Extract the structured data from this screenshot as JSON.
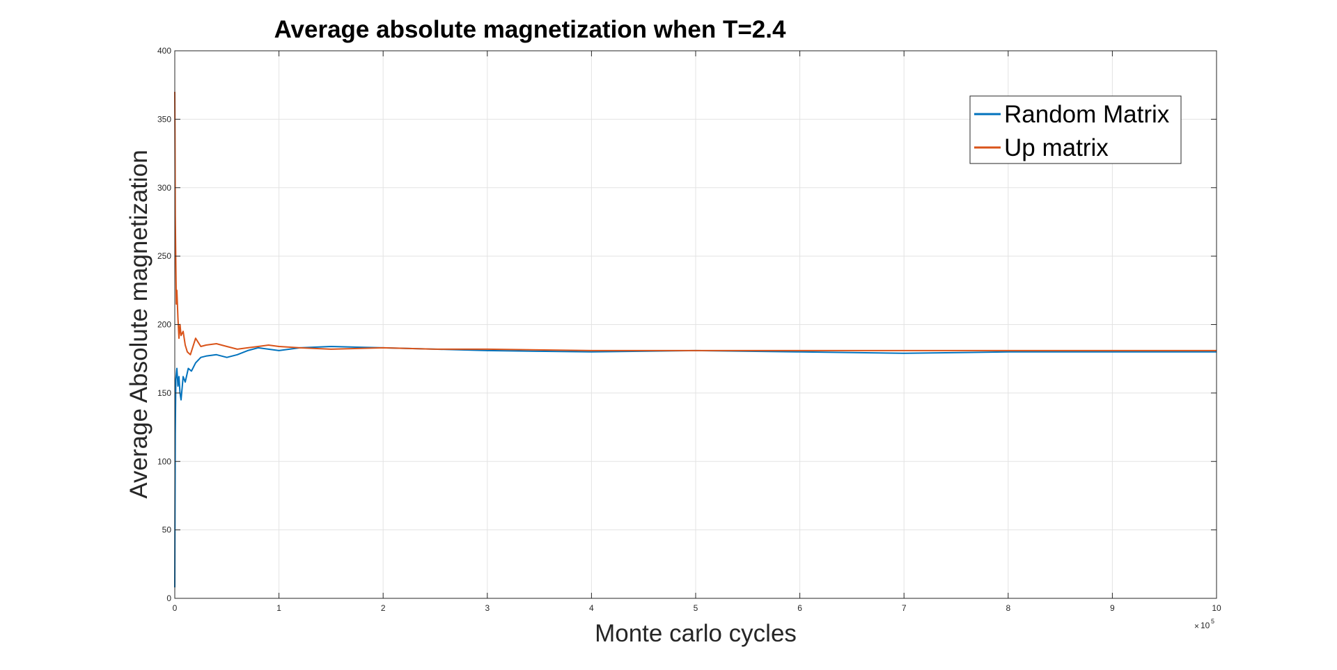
{
  "chart_data": {
    "type": "line",
    "title": "Average absolute magnetization when T=2.4",
    "xlabel": "Monte carlo cycles",
    "ylabel": "Average Absolute magnetization",
    "x_exponent_base": "10",
    "x_exponent_power": "5",
    "xlim": [
      0,
      10
    ],
    "ylim": [
      0,
      400
    ],
    "xticks": [
      "0",
      "1",
      "2",
      "3",
      "4",
      "5",
      "6",
      "7",
      "8",
      "9",
      "10"
    ],
    "yticks": [
      "0",
      "50",
      "100",
      "150",
      "200",
      "250",
      "300",
      "350",
      "400"
    ],
    "grid": true,
    "legend_position": "top-right",
    "series": [
      {
        "name": "Random Matrix",
        "color": "#0072BD",
        "x": [
          0,
          0.002,
          0.005,
          0.01,
          0.02,
          0.03,
          0.04,
          0.05,
          0.06,
          0.08,
          0.1,
          0.13,
          0.16,
          0.2,
          0.25,
          0.3,
          0.4,
          0.5,
          0.6,
          0.7,
          0.8,
          0.9,
          1.0,
          1.2,
          1.5,
          2.0,
          2.5,
          3.0,
          4.0,
          5.0,
          6.0,
          7.0,
          8.0,
          9.0,
          10.0
        ],
        "y": [
          8,
          60,
          120,
          160,
          168,
          155,
          162,
          150,
          145,
          162,
          158,
          168,
          166,
          172,
          176,
          177,
          178,
          176,
          178,
          181,
          183,
          182,
          181,
          183,
          184,
          183,
          182,
          181,
          180,
          181,
          180,
          179,
          180,
          180,
          180
        ]
      },
      {
        "name": "Up matrix",
        "color": "#D95319",
        "x": [
          0,
          0.002,
          0.005,
          0.01,
          0.015,
          0.02,
          0.03,
          0.04,
          0.05,
          0.06,
          0.08,
          0.1,
          0.12,
          0.15,
          0.2,
          0.25,
          0.3,
          0.4,
          0.5,
          0.6,
          0.7,
          0.8,
          0.9,
          1.0,
          1.2,
          1.5,
          2.0,
          2.5,
          3.0,
          4.0,
          5.0,
          6.0,
          7.0,
          8.0,
          9.0,
          10.0
        ],
        "y": [
          370,
          340,
          280,
          245,
          215,
          225,
          205,
          190,
          200,
          192,
          195,
          185,
          180,
          178,
          190,
          184,
          185,
          186,
          184,
          182,
          183,
          184,
          185,
          184,
          183,
          182,
          183,
          182,
          182,
          181,
          181,
          181,
          181,
          181,
          181,
          181
        ]
      }
    ]
  }
}
